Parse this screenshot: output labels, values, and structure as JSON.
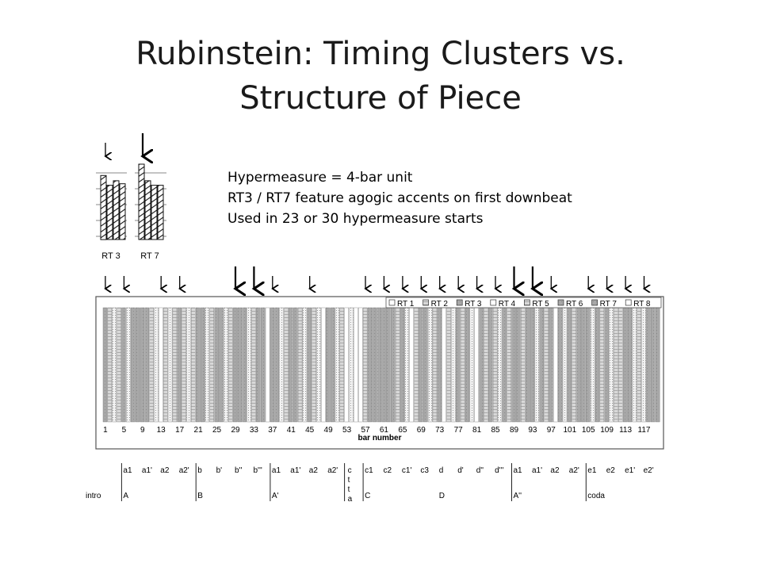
{
  "slide": {
    "title_line1": "Rubinstein: Timing Clusters vs.",
    "title_line2": "Structure of Piece",
    "notes": [
      "Hypermeasure = 4-bar unit",
      "RT3 / RT7 feature agogic accents on first downbeat",
      "Used in 23 or 30 hypermeasure starts"
    ]
  },
  "chart_data": {
    "type": "bar",
    "title": "",
    "xlabel": "bar number",
    "xlim": [
      1,
      120
    ],
    "x_ticks": [
      1,
      5,
      9,
      13,
      17,
      21,
      25,
      29,
      33,
      37,
      41,
      45,
      49,
      53,
      57,
      61,
      65,
      69,
      73,
      77,
      81,
      85,
      89,
      93,
      97,
      101,
      105,
      109,
      113,
      117
    ],
    "legend_position": "top-right",
    "legend": [
      {
        "label": "RT 1",
        "pattern": "blank"
      },
      {
        "label": "RT 2",
        "pattern": "stripe"
      },
      {
        "label": "RT 3",
        "pattern": "gray"
      },
      {
        "label": "RT 4",
        "pattern": "blank"
      },
      {
        "label": "RT 5",
        "pattern": "stripe"
      },
      {
        "label": "RT 6",
        "pattern": "gray"
      },
      {
        "label": "RT 7",
        "pattern": "gray"
      },
      {
        "label": "RT 8",
        "pattern": "blank"
      }
    ],
    "patterns": {
      "gray": "#a8a8a8",
      "stripe": "#cfcfcf",
      "dot": "#ebebeb",
      "blank": "#ffffff"
    },
    "bars": [
      "gray",
      "stripe",
      "dot",
      "stripe",
      "gray",
      "dot",
      "gray",
      "gray",
      "gray",
      "gray",
      "stripe",
      "dot",
      "blank",
      "stripe",
      "dot",
      "stripe",
      "gray",
      "stripe",
      "dot",
      "stripe",
      "gray",
      "gray",
      "dot",
      "stripe",
      "gray",
      "gray",
      "dot",
      "stripe",
      "gray",
      "gray",
      "gray",
      "dot",
      "stripe",
      "gray",
      "gray",
      "blank",
      "gray",
      "gray",
      "dot",
      "stripe",
      "gray",
      "gray",
      "stripe",
      "dot",
      "gray",
      "stripe",
      "dot",
      "blank",
      "gray",
      "gray",
      "dot",
      "stripe",
      "blank",
      "dot",
      "blank",
      "blank",
      "stripe",
      "gray",
      "gray",
      "gray",
      "gray",
      "gray",
      "gray",
      "stripe",
      "gray",
      "dot",
      "blank",
      "stripe",
      "gray",
      "gray",
      "dot",
      "stripe",
      "gray",
      "blank",
      "stripe",
      "dot",
      "gray",
      "stripe",
      "gray",
      "dot",
      "blank",
      "gray",
      "stripe",
      "gray",
      "stripe",
      "dot",
      "gray",
      "stripe",
      "gray",
      "gray",
      "stripe",
      "gray",
      "gray",
      "dot",
      "gray",
      "stripe",
      "gray",
      "blank",
      "gray",
      "dot",
      "gray",
      "stripe",
      "gray",
      "gray",
      "gray",
      "dot",
      "gray",
      "stripe",
      "gray",
      "dot",
      "stripe",
      "stripe",
      "gray",
      "gray",
      "dot",
      "stripe",
      "dot",
      "gray",
      "gray",
      "gray"
    ],
    "arrows": [
      {
        "bar": 1,
        "bold": false
      },
      {
        "bar": 5,
        "bold": false
      },
      {
        "bar": 13,
        "bold": false
      },
      {
        "bar": 17,
        "bold": false
      },
      {
        "bar": 29,
        "bold": true
      },
      {
        "bar": 33,
        "bold": true
      },
      {
        "bar": 37,
        "bold": false
      },
      {
        "bar": 45,
        "bold": false
      },
      {
        "bar": 57,
        "bold": false
      },
      {
        "bar": 61,
        "bold": false
      },
      {
        "bar": 65,
        "bold": false
      },
      {
        "bar": 69,
        "bold": false
      },
      {
        "bar": 73,
        "bold": false
      },
      {
        "bar": 77,
        "bold": false
      },
      {
        "bar": 81,
        "bold": false
      },
      {
        "bar": 85,
        "bold": false
      },
      {
        "bar": 89,
        "bold": true
      },
      {
        "bar": 93,
        "bold": true
      },
      {
        "bar": 97,
        "bold": false
      },
      {
        "bar": 105,
        "bold": false
      },
      {
        "bar": 109,
        "bold": false
      },
      {
        "bar": 113,
        "bold": false
      },
      {
        "bar": 117,
        "bold": false
      }
    ],
    "form_segments": [
      {
        "label": "a1",
        "bar": 5
      },
      {
        "label": "a1'",
        "bar": 9
      },
      {
        "label": "a2",
        "bar": 13
      },
      {
        "label": "a2'",
        "bar": 17
      },
      {
        "label": "b",
        "bar": 21
      },
      {
        "label": "b'",
        "bar": 25
      },
      {
        "label": "b''",
        "bar": 29
      },
      {
        "label": "b'''",
        "bar": 33
      },
      {
        "label": "a1",
        "bar": 37
      },
      {
        "label": "a1'",
        "bar": 41
      },
      {
        "label": "a2",
        "bar": 45
      },
      {
        "label": "a2'",
        "bar": 49
      },
      {
        "label": "c1",
        "bar": 57
      },
      {
        "label": "c2",
        "bar": 61
      },
      {
        "label": "c1'",
        "bar": 65
      },
      {
        "label": "c3",
        "bar": 69
      },
      {
        "label": "d",
        "bar": 73
      },
      {
        "label": "d'",
        "bar": 77
      },
      {
        "label": "d''",
        "bar": 81
      },
      {
        "label": "d'''",
        "bar": 85
      },
      {
        "label": "a1",
        "bar": 89
      },
      {
        "label": "a1'",
        "bar": 93
      },
      {
        "label": "a2",
        "bar": 97
      },
      {
        "label": "a2'",
        "bar": 101
      },
      {
        "label": "e1",
        "bar": 105
      },
      {
        "label": "e2",
        "bar": 109
      },
      {
        "label": "e1'",
        "bar": 113
      },
      {
        "label": "e2'",
        "bar": 117
      }
    ],
    "form_sections": [
      {
        "label": "intro",
        "bar": 1
      },
      {
        "label": "A",
        "bar": 5
      },
      {
        "label": "B",
        "bar": 21
      },
      {
        "label": "A'",
        "bar": 37
      },
      {
        "label": "C",
        "bar": 57
      },
      {
        "label": "D",
        "bar": 73
      },
      {
        "label": "A''",
        "bar": 89
      },
      {
        "label": "coda",
        "bar": 105
      }
    ],
    "cetta_letters": [
      "c",
      "t",
      "t",
      "a"
    ],
    "section_dividers_at_bars": [
      5,
      21,
      37,
      53,
      57,
      89,
      105
    ],
    "inset": {
      "labels": [
        "RT 3",
        "RT 7"
      ],
      "bars": [
        {
          "cluster": "RT 3",
          "values": [
            0.85,
            0.72,
            0.78,
            0.74
          ]
        },
        {
          "cluster": "RT 7",
          "values": [
            1.0,
            0.78,
            0.72,
            0.72
          ]
        }
      ]
    }
  }
}
